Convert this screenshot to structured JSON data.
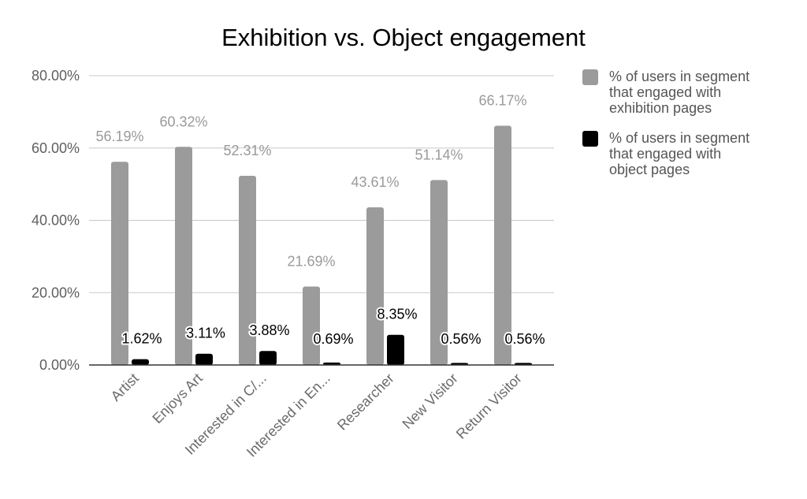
{
  "chart_data": {
    "type": "bar",
    "title": "Exhibition vs. Object engagement",
    "xlabel": "",
    "ylabel": "",
    "categories": [
      "Artist",
      "Enjoys Art",
      "Interested in C/...",
      "Interested in En...",
      "Researcher",
      "New Visitor",
      "Return Visitor"
    ],
    "series": [
      {
        "name": "% of users in segment that engaged with exhibition pages",
        "legend_lines": [
          "% of users in segment",
          "that engaged with",
          "exhibition pages"
        ],
        "color": "#9b9b9b",
        "label_color": "#9a9a9a",
        "values": [
          56.19,
          60.32,
          52.31,
          21.69,
          43.61,
          51.14,
          66.17
        ],
        "data_labels": [
          "56.19%",
          "60.32%",
          "52.31%",
          "21.69%",
          "43.61%",
          "51.14%",
          "66.17%"
        ]
      },
      {
        "name": "% of users in segment that engaged with object pages",
        "legend_lines": [
          "% of users in segment",
          "that engaged with",
          "object pages"
        ],
        "color": "#000000",
        "label_color": "#000000",
        "values": [
          1.62,
          3.11,
          3.88,
          0.69,
          8.35,
          0.56,
          0.56
        ],
        "data_labels": [
          "1.62%",
          "3.11%",
          "3.88%",
          "0.69%",
          "8.35%",
          "0.56%",
          "0.56%"
        ]
      }
    ],
    "ylim": [
      0,
      80
    ],
    "yticks": [
      0,
      20,
      40,
      60,
      80
    ],
    "ytick_labels": [
      "0.00%",
      "20.00%",
      "40.00%",
      "60.00%",
      "80.00%"
    ],
    "grid": true,
    "legend_position": "right"
  }
}
